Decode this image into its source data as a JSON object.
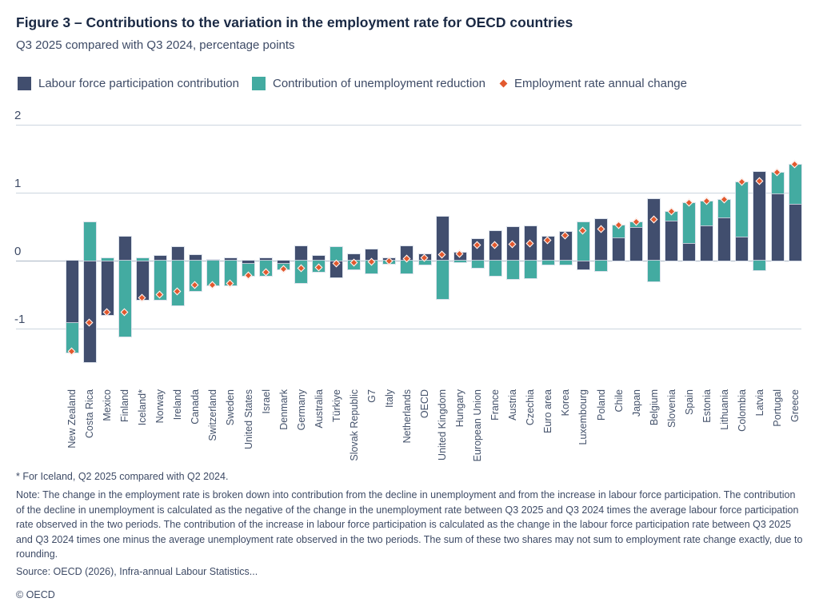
{
  "figure": {
    "title": "Figure 3 – Contributions to the variation in the employment rate for OECD countries",
    "subtitle": "Q3 2025 compared with Q3 2024, percentage points"
  },
  "legend": [
    {
      "label": "Labour force participation contribution",
      "color": "#414e6e",
      "marker": "square"
    },
    {
      "label": "Contribution of unemployment reduction",
      "color": "#43aba1",
      "marker": "square"
    },
    {
      "label": "Employment rate annual change",
      "color": "#e2592e",
      "marker": "diamond"
    }
  ],
  "style": {
    "grid_color": "#ccd5df",
    "zero_line_color": "#aab6c4",
    "text_color": "#3e4b66",
    "title_color": "#1a2944",
    "marker_color": "#e2592e",
    "marker_border": "#ffffff"
  },
  "chart_data": {
    "type": "bar",
    "stacked": true,
    "orientation": "vertical",
    "title": "Figure 3 – Contributions to the variation in the employment rate for OECD countries",
    "subtitle": "Q3 2025 compared with Q3 2024, percentage points",
    "xlabel": "",
    "ylabel": "percentage points",
    "ylim": [
      -1.65,
      2.2
    ],
    "yticks": [
      2,
      1,
      0,
      -1
    ],
    "grid": "horizontal",
    "legend_position": "top",
    "categories": [
      "New Zealand",
      "Costa Rica",
      "Mexico",
      "Finland",
      "Iceland*",
      "Norway",
      "Ireland",
      "Canada",
      "Switzerland",
      "Sweden",
      "United States",
      "Israel",
      "Denmark",
      "Germany",
      "Australia",
      "Türkiye",
      "Slovak Republic",
      "G7",
      "Italy",
      "Netherlands",
      "OECD",
      "United Kingdom",
      "Hungary",
      "European Union",
      "France",
      "Austria",
      "Czechia",
      "Euro area",
      "Korea",
      "Luxembourg",
      "Poland",
      "Chile",
      "Japan",
      "Belgium",
      "Slovenia",
      "Spain",
      "Estonia",
      "Lithuania",
      "Colombia",
      "Latvia",
      "Portugal",
      "Greece"
    ],
    "series": [
      {
        "name": "Labour force participation contribution",
        "color": "#414e6e",
        "values": [
          -0.92,
          -1.49,
          -0.8,
          0.35,
          -0.58,
          0.07,
          0.2,
          0.08,
          0.01,
          0.03,
          -0.05,
          0.04,
          -0.05,
          0.21,
          0.07,
          -0.25,
          0.09,
          0.17,
          0.04,
          0.21,
          0.09,
          0.65,
          0.12,
          0.32,
          0.44,
          0.5,
          0.51,
          0.35,
          0.42,
          -0.13,
          0.61,
          0.34,
          0.49,
          0.91,
          0.59,
          0.26,
          0.52,
          0.63,
          0.35,
          1.31,
          0.99,
          0.84
        ]
      },
      {
        "name": "Contribution of unemployment reduction",
        "color": "#43aba1",
        "values": [
          -0.43,
          0.56,
          0.03,
          -1.12,
          0.03,
          -0.58,
          -0.66,
          -0.45,
          -0.37,
          -0.37,
          -0.17,
          -0.22,
          -0.08,
          -0.33,
          -0.17,
          0.2,
          -0.13,
          -0.19,
          -0.05,
          -0.19,
          -0.06,
          -0.57,
          -0.02,
          -0.1,
          -0.22,
          -0.27,
          -0.26,
          -0.06,
          -0.06,
          0.56,
          -0.15,
          0.18,
          0.08,
          -0.31,
          0.13,
          0.59,
          0.35,
          0.27,
          0.8,
          -0.14,
          0.3,
          0.57
        ]
      }
    ],
    "markers": {
      "name": "Employment rate annual change",
      "color": "#e2592e",
      "shape": "diamond",
      "values": [
        -1.34,
        -0.92,
        -0.77,
        -0.77,
        -0.55,
        -0.51,
        -0.46,
        -0.37,
        -0.36,
        -0.34,
        -0.22,
        -0.18,
        -0.13,
        -0.12,
        -0.1,
        -0.05,
        -0.04,
        -0.02,
        -0.01,
        0.02,
        0.03,
        0.08,
        0.1,
        0.22,
        0.22,
        0.23,
        0.25,
        0.29,
        0.36,
        0.43,
        0.46,
        0.52,
        0.57,
        0.6,
        0.72,
        0.85,
        0.87,
        0.9,
        1.15,
        1.17,
        1.29,
        1.41
      ]
    }
  },
  "footnotes": {
    "iceland": "* For Iceland, Q2 2025 compared with Q2 2024.",
    "note": "Note: The change in the employment rate is broken down into contribution from the decline in unemployment and from the increase in labour force participation. The contribution of the decline in unemployment is calculated as the negative of the change in the unemployment rate between Q3 2025 and Q3 2024 times the average labour force participation rate observed in the two periods. The contribution of the increase in labour force participation is calculated as the change in the labour force participation rate between Q3 2025 and Q3 2024 times one minus the average unemployment rate observed in the two periods. The sum of these two shares may not sum to employment rate change exactly, due to rounding.",
    "source": "Source: OECD (2026), Infra-annual Labour Statistics...",
    "copyright": "© OECD"
  }
}
